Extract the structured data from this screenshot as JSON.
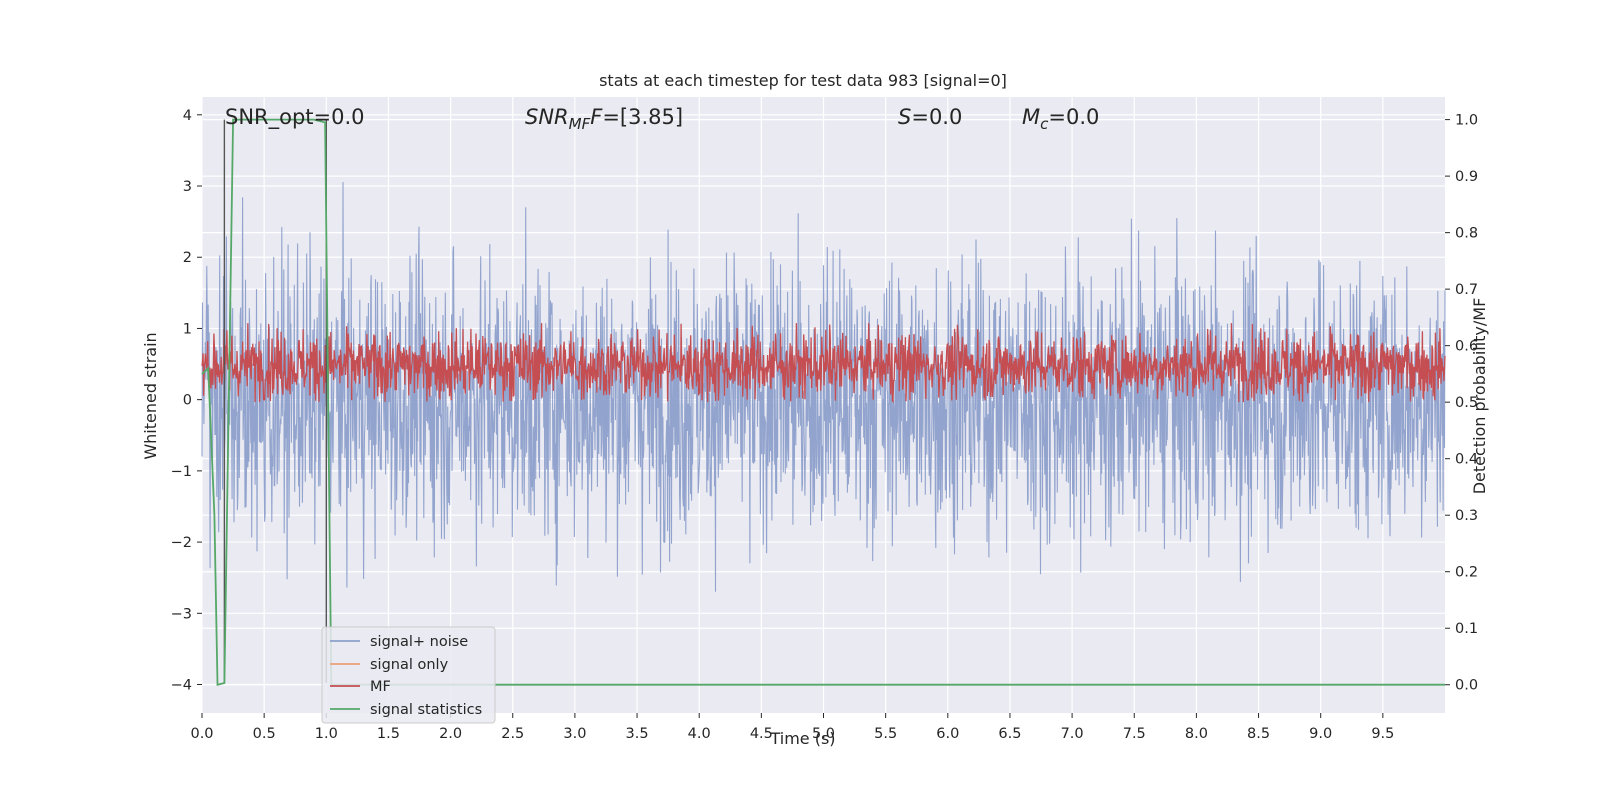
{
  "chart_data": {
    "type": "line",
    "title": "stats at each timestep for test data 983 [signal=0]",
    "xlabel": "Time (s)",
    "ylabel_left": "Whitened strain",
    "ylabel_right": "Detection probability/MF",
    "xlim": [
      0.0,
      10.0
    ],
    "ylim_left": [
      -4.4,
      4.25
    ],
    "ylim_right": [
      -0.05,
      1.04
    ],
    "x_ticks": [
      "0.0",
      "0.5",
      "1.0",
      "1.5",
      "2.0",
      "2.5",
      "3.0",
      "3.5",
      "4.0",
      "4.5",
      "5.0",
      "5.5",
      "6.0",
      "6.5",
      "7.0",
      "7.5",
      "8.0",
      "8.5",
      "9.0",
      "9.5"
    ],
    "y_ticks_left": [
      "−4",
      "−3",
      "−2",
      "−1",
      "0",
      "1",
      "2",
      "3",
      "4"
    ],
    "y_ticks_right": [
      "0.0",
      "0.1",
      "0.2",
      "0.3",
      "0.4",
      "0.5",
      "0.6",
      "0.7",
      "0.8",
      "0.9",
      "1.0"
    ],
    "annotations": {
      "snr_opt": "SNR_opt=0.0",
      "snr_mf_name": "SNR",
      "snr_mf_sub": "MF",
      "snr_mf_value": "=[3.85]",
      "s_name": "S",
      "s_value": "=0.0",
      "mc_name": "M",
      "mc_sub": "c",
      "mc_value": "=0.0"
    },
    "grid": true,
    "legend_position": "lower left",
    "series": [
      {
        "name": "signal+ noise",
        "color": "#8da0cb",
        "axis": "left",
        "description_range": [
          -4.05,
          3.9
        ]
      },
      {
        "name": "signal only",
        "color": "#e8a07a",
        "axis": "left"
      },
      {
        "name": "MF",
        "color": "#c44e52",
        "axis": "right",
        "typical_range": [
          0.5,
          0.63
        ]
      },
      {
        "name": "signal statistics",
        "color": "#55a868",
        "axis": "right",
        "x": [
          0.0,
          0.05,
          0.1,
          0.125,
          0.18,
          0.25,
          0.3,
          0.5,
          0.75,
          0.9,
          0.99,
          1.04,
          1.5,
          2.0,
          3.0,
          4.0,
          5.0,
          6.0,
          7.0,
          8.0,
          9.0,
          10.0
        ],
        "y": [
          0.55,
          0.56,
          0.3,
          0.0,
          0.003,
          1.0,
          1.0,
          1.0,
          1.0,
          1.0,
          0.995,
          0.0,
          0.0,
          0.0,
          0.0,
          0.0,
          0.0,
          0.0,
          0.0,
          0.0,
          0.0,
          0.0
        ]
      }
    ],
    "vertical_markers": [
      0.18,
      1.0
    ],
    "colors": {
      "axes_bg": "#eaeaf2",
      "grid": "#ffffff",
      "marker": "#555555"
    }
  }
}
